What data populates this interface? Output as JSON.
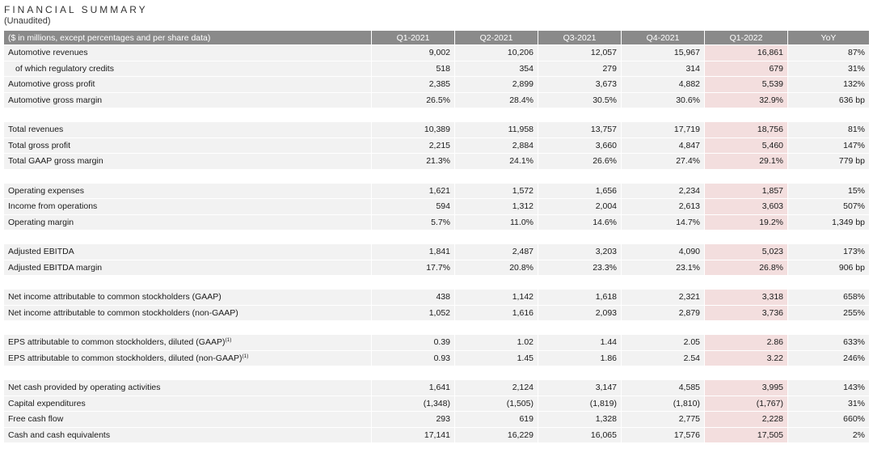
{
  "title": "FINANCIAL SUMMARY",
  "subtitle": "(Unaudited)",
  "table": {
    "header": [
      "($ in millions, except percentages and per share data)",
      "Q1-2021",
      "Q2-2021",
      "Q3-2021",
      "Q4-2021",
      "Q1-2022",
      "YoY"
    ],
    "highlight_column": "Q1-2022",
    "highlight_color": "#f3dede",
    "header_color": "#8a8a8a",
    "groups": [
      [
        {
          "label": "Automotive revenues",
          "values": [
            "9,002",
            "10,206",
            "12,057",
            "15,967",
            "16,861",
            "87%"
          ]
        },
        {
          "label": "of which regulatory credits",
          "indent": true,
          "values": [
            "518",
            "354",
            "279",
            "314",
            "679",
            "31%"
          ]
        },
        {
          "label": "Automotive gross profit",
          "values": [
            "2,385",
            "2,899",
            "3,673",
            "4,882",
            "5,539",
            "132%"
          ]
        },
        {
          "label": "Automotive gross margin",
          "values": [
            "26.5%",
            "28.4%",
            "30.5%",
            "30.6%",
            "32.9%",
            "636 bp"
          ]
        }
      ],
      [
        {
          "label": "Total revenues",
          "values": [
            "10,389",
            "11,958",
            "13,757",
            "17,719",
            "18,756",
            "81%"
          ]
        },
        {
          "label": "Total gross profit",
          "values": [
            "2,215",
            "2,884",
            "3,660",
            "4,847",
            "5,460",
            "147%"
          ]
        },
        {
          "label": "Total GAAP gross margin",
          "values": [
            "21.3%",
            "24.1%",
            "26.6%",
            "27.4%",
            "29.1%",
            "779 bp"
          ]
        }
      ],
      [
        {
          "label": "Operating expenses",
          "values": [
            "1,621",
            "1,572",
            "1,656",
            "2,234",
            "1,857",
            "15%"
          ]
        },
        {
          "label": "Income from operations",
          "values": [
            "594",
            "1,312",
            "2,004",
            "2,613",
            "3,603",
            "507%"
          ]
        },
        {
          "label": "Operating margin",
          "values": [
            "5.7%",
            "11.0%",
            "14.6%",
            "14.7%",
            "19.2%",
            "1,349 bp"
          ]
        }
      ],
      [
        {
          "label": "Adjusted EBITDA",
          "values": [
            "1,841",
            "2,487",
            "3,203",
            "4,090",
            "5,023",
            "173%"
          ]
        },
        {
          "label": "Adjusted EBITDA margin",
          "values": [
            "17.7%",
            "20.8%",
            "23.3%",
            "23.1%",
            "26.8%",
            "906 bp"
          ]
        }
      ],
      [
        {
          "label": "Net income attributable to common stockholders (GAAP)",
          "values": [
            "438",
            "1,142",
            "1,618",
            "2,321",
            "3,318",
            "658%"
          ]
        },
        {
          "label": "Net income attributable to common stockholders (non-GAAP)",
          "values": [
            "1,052",
            "1,616",
            "2,093",
            "2,879",
            "3,736",
            "255%"
          ]
        }
      ],
      [
        {
          "label": "EPS attributable to common stockholders, diluted (GAAP)",
          "footnote": "(1)",
          "values": [
            "0.39",
            "1.02",
            "1.44",
            "2.05",
            "2.86",
            "633%"
          ]
        },
        {
          "label": "EPS attributable to common stockholders, diluted (non-GAAP)",
          "footnote": "(1)",
          "values": [
            "0.93",
            "1.45",
            "1.86",
            "2.54",
            "3.22",
            "246%"
          ]
        }
      ],
      [
        {
          "label": "Net cash provided by operating activities",
          "values": [
            "1,641",
            "2,124",
            "3,147",
            "4,585",
            "3,995",
            "143%"
          ]
        },
        {
          "label": "Capital expenditures",
          "values": [
            "(1,348)",
            "(1,505)",
            "(1,819)",
            "(1,810)",
            "(1,767)",
            "31%"
          ]
        },
        {
          "label": "Free cash flow",
          "values": [
            "293",
            "619",
            "1,328",
            "2,775",
            "2,228",
            "660%"
          ]
        },
        {
          "label": "Cash and cash equivalents",
          "values": [
            "17,141",
            "16,229",
            "16,065",
            "17,576",
            "17,505",
            "2%"
          ]
        }
      ]
    ]
  }
}
